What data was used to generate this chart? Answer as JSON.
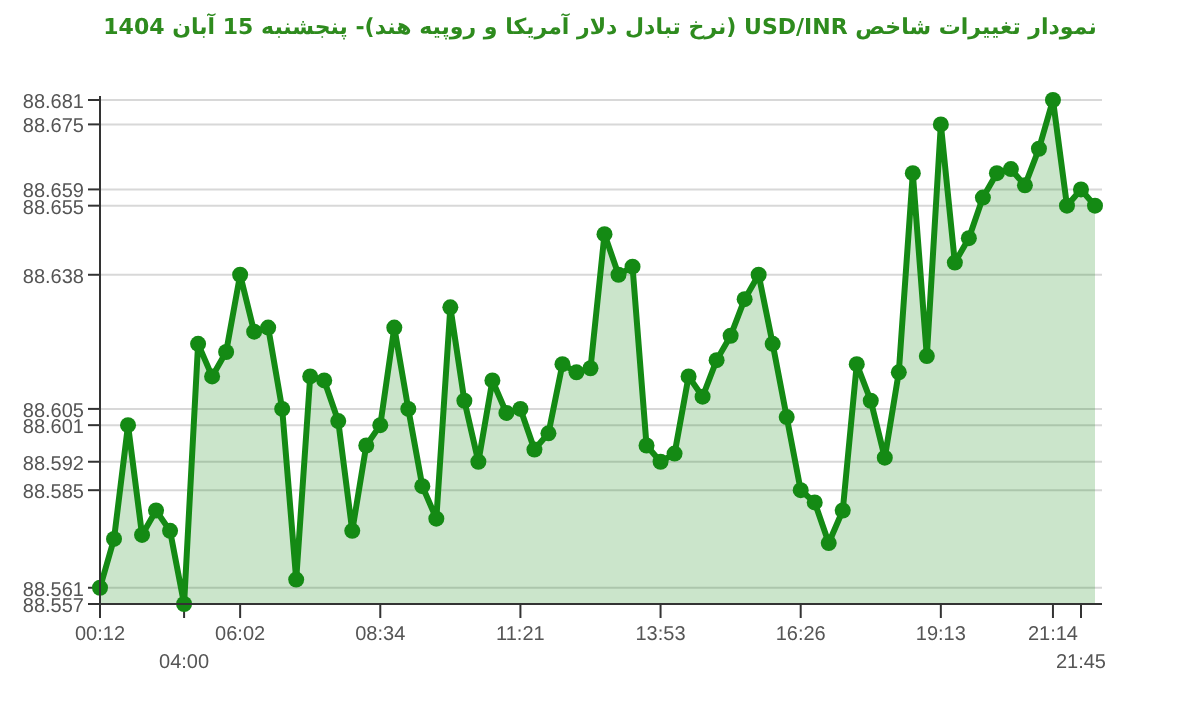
{
  "chart_data": {
    "type": "area",
    "title": "نمودار تغییرات شاخص USD/INR (نرخ تبادل دلار آمریکا و روپیه هند)- پنجشنبه 15 آبان 1404",
    "categories": [
      "00:12",
      null,
      null,
      null,
      null,
      null,
      "04:00",
      null,
      null,
      null,
      "06:02",
      null,
      null,
      null,
      null,
      null,
      null,
      null,
      null,
      null,
      "08:34",
      null,
      null,
      null,
      null,
      null,
      null,
      null,
      null,
      null,
      "11:21",
      null,
      null,
      null,
      null,
      null,
      null,
      null,
      null,
      null,
      "13:53",
      null,
      null,
      null,
      null,
      null,
      null,
      null,
      null,
      null,
      "16:26",
      null,
      null,
      null,
      null,
      null,
      null,
      null,
      null,
      null,
      "19:13",
      null,
      null,
      null,
      null,
      null,
      null,
      null,
      "21:14",
      null,
      "21:45",
      null
    ],
    "series": [
      {
        "color": "#148a14",
        "values": [
          88.561,
          88.573,
          88.601,
          88.574,
          88.58,
          88.575,
          88.557,
          88.621,
          88.613,
          88.619,
          88.638,
          88.624,
          88.625,
          88.605,
          88.563,
          88.613,
          88.612,
          88.602,
          88.575,
          88.596,
          88.601,
          88.625,
          88.605,
          88.586,
          88.578,
          88.63,
          88.607,
          88.592,
          88.612,
          88.604,
          88.605,
          88.595,
          88.599,
          88.616,
          88.614,
          88.615,
          88.648,
          88.638,
          88.64,
          88.596,
          88.592,
          88.594,
          88.613,
          88.608,
          88.617,
          88.623,
          88.632,
          88.638,
          88.621,
          88.603,
          88.585,
          88.582,
          88.572,
          88.58,
          88.616,
          88.607,
          88.593,
          88.614,
          88.663,
          88.618,
          88.675,
          88.641,
          88.647,
          88.657,
          88.663,
          88.664,
          88.66,
          88.669,
          88.681,
          88.655,
          88.659,
          88.655
        ]
      }
    ],
    "ylim": [
      88.557,
      88.681
    ],
    "yticks": [
      88.557,
      88.561,
      88.585,
      88.592,
      88.601,
      88.605,
      88.638,
      88.655,
      88.659,
      88.675,
      88.681
    ],
    "grid": "y",
    "marker": "circle",
    "line_style": "solid"
  }
}
